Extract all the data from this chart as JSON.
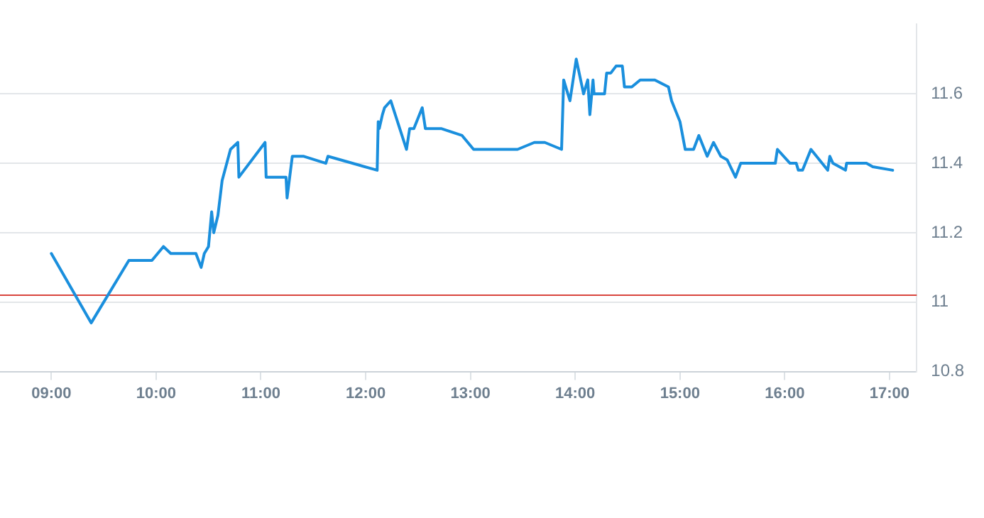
{
  "chart_data": {
    "type": "line",
    "x": [
      9.0,
      9.38,
      9.74,
      9.96,
      10.07,
      10.14,
      10.38,
      10.43,
      10.46,
      10.5,
      10.53,
      10.55,
      10.59,
      10.63,
      10.71,
      10.78,
      10.79,
      11.04,
      11.05,
      11.24,
      11.25,
      11.3,
      11.41,
      11.62,
      11.64,
      12.11,
      12.12,
      12.13,
      12.16,
      12.18,
      12.24,
      12.39,
      12.42,
      12.46,
      12.54,
      12.57,
      12.72,
      12.92,
      13.03,
      13.45,
      13.61,
      13.71,
      13.87,
      13.89,
      13.95,
      14.01,
      14.08,
      14.12,
      14.14,
      14.17,
      14.18,
      14.28,
      14.3,
      14.34,
      14.39,
      14.45,
      14.47,
      14.54,
      14.62,
      14.76,
      14.89,
      14.92,
      15.0,
      15.05,
      15.13,
      15.18,
      15.26,
      15.32,
      15.39,
      15.45,
      15.53,
      15.58,
      15.91,
      15.93,
      16.05,
      16.11,
      16.13,
      16.17,
      16.25,
      16.41,
      16.43,
      16.46,
      16.58,
      16.59,
      16.78,
      16.84,
      17.03
    ],
    "series": [
      {
        "color": "#1a8fdd",
        "values": [
          11.14,
          10.94,
          11.12,
          11.12,
          11.16,
          11.14,
          11.14,
          11.1,
          11.14,
          11.16,
          11.26,
          11.2,
          11.25,
          11.35,
          11.44,
          11.46,
          11.36,
          11.46,
          11.36,
          11.36,
          11.3,
          11.42,
          11.42,
          11.4,
          11.42,
          11.38,
          11.52,
          11.5,
          11.54,
          11.56,
          11.58,
          11.44,
          11.5,
          11.5,
          11.56,
          11.5,
          11.5,
          11.48,
          11.44,
          11.44,
          11.46,
          11.46,
          11.44,
          11.64,
          11.58,
          11.7,
          11.6,
          11.64,
          11.54,
          11.64,
          11.6,
          11.6,
          11.66,
          11.66,
          11.68,
          11.68,
          11.62,
          11.62,
          11.64,
          11.64,
          11.62,
          11.58,
          11.52,
          11.44,
          11.44,
          11.48,
          11.42,
          11.46,
          11.42,
          11.41,
          11.36,
          11.4,
          11.4,
          11.44,
          11.4,
          11.4,
          11.38,
          11.38,
          11.44,
          11.38,
          11.42,
          11.4,
          11.38,
          11.4,
          11.4,
          11.39,
          11.38
        ]
      }
    ],
    "xlim": [
      8.51,
      17.26
    ],
    "xticks": [
      {
        "value": 9,
        "label": "09:00"
      },
      {
        "value": 10,
        "label": "10:00"
      },
      {
        "value": 11,
        "label": "11:00"
      },
      {
        "value": 12,
        "label": "12:00"
      },
      {
        "value": 13,
        "label": "13:00"
      },
      {
        "value": 14,
        "label": "14:00"
      },
      {
        "value": 15,
        "label": "15:00"
      },
      {
        "value": 16,
        "label": "16:00"
      },
      {
        "value": 17,
        "label": "17:00"
      }
    ],
    "ylim": [
      10.8,
      11.8
    ],
    "yticks": [
      10.8,
      11,
      11.2,
      11.4,
      11.6
    ],
    "grid": "y",
    "marker": "none",
    "line_style": "solid",
    "legend": false,
    "ref_lines": [
      {
        "axis": "y",
        "value": 11.02,
        "color": "#d9453d"
      }
    ]
  }
}
